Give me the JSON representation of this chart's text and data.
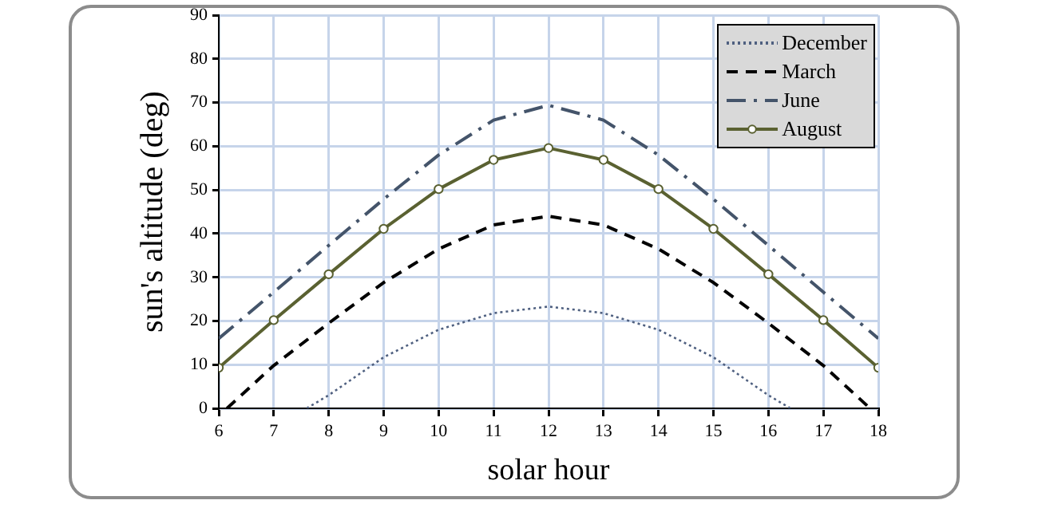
{
  "chart_data": {
    "type": "line",
    "xlabel": "solar hour",
    "ylabel": "sun's altitude (deg)",
    "xlim": [
      6,
      18
    ],
    "xticks": [
      6,
      7,
      8,
      9,
      10,
      11,
      12,
      13,
      14,
      15,
      16,
      17,
      18
    ],
    "ylim": [
      0,
      90
    ],
    "yticks": [
      0,
      10,
      20,
      30,
      40,
      50,
      60,
      70,
      80,
      90
    ],
    "grid": true,
    "legend": "top right",
    "series": [
      {
        "name": "December",
        "color": "#4f6080",
        "line_style": "dotted",
        "marker": "none",
        "x": [
          7.6,
          8,
          9,
          10,
          11,
          12,
          13,
          14,
          15,
          16,
          16.4
        ],
        "values": [
          0,
          3,
          11.7,
          18,
          21.8,
          23.3,
          21.8,
          18,
          11.7,
          3,
          0
        ]
      },
      {
        "name": "March",
        "color": "#000000",
        "line_style": "dashed",
        "marker": "none",
        "x": [
          6.15,
          7,
          8,
          9,
          10,
          11,
          12,
          13,
          14,
          15,
          16,
          17,
          17.85
        ],
        "values": [
          0,
          9.8,
          19.5,
          28.8,
          36.5,
          42,
          44,
          42,
          36.5,
          28.8,
          19.5,
          9.8,
          0
        ]
      },
      {
        "name": "June",
        "color": "#44546a",
        "line_style": "dashdot",
        "marker": "none",
        "x": [
          6,
          7,
          8,
          9,
          10,
          11,
          12,
          13,
          14,
          15,
          16,
          17,
          18
        ],
        "values": [
          16,
          26.6,
          37.3,
          47.9,
          58,
          66,
          69.4,
          66,
          58,
          47.9,
          37.3,
          26.6,
          16
        ]
      },
      {
        "name": "August",
        "color": "#5a6131",
        "line_style": "solid",
        "marker": "circle",
        "x": [
          6,
          7,
          8,
          9,
          10,
          11,
          12,
          13,
          14,
          15,
          16,
          17,
          18
        ],
        "values": [
          9.3,
          20.2,
          30.7,
          41.1,
          50.2,
          56.9,
          59.6,
          56.9,
          50.2,
          41.1,
          30.7,
          20.2,
          9.3
        ]
      }
    ]
  }
}
